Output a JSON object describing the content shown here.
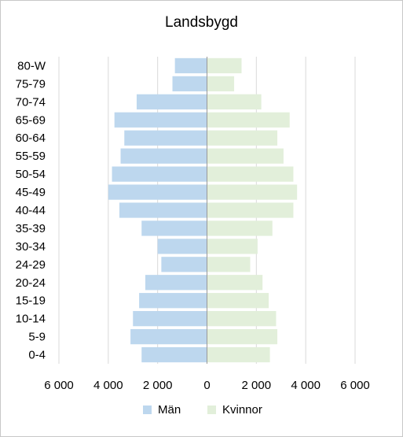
{
  "colors": {
    "man": "#bdd7ee",
    "kvinnor": "#e2efda",
    "grid": "#d9d9d9",
    "axis": "#999999"
  },
  "chart_data": {
    "type": "bar",
    "title": "Landsbygd",
    "orientation": "horizontal-population-pyramid",
    "categories": [
      "0-4",
      "5-9",
      "10-14",
      "15-19",
      "20-24",
      "24-29",
      "30-34",
      "35-39",
      "40-44",
      "45-49",
      "50-54",
      "55-59",
      "60-64",
      "65-69",
      "70-74",
      "75-79",
      "80-W"
    ],
    "series": [
      {
        "name": "Män",
        "side": "left",
        "values": [
          2650,
          3100,
          3000,
          2750,
          2500,
          1850,
          2000,
          2650,
          3550,
          4000,
          3850,
          3500,
          3350,
          3750,
          2850,
          1400,
          1300
        ]
      },
      {
        "name": "Kvinnor",
        "side": "right",
        "values": [
          2550,
          2850,
          2800,
          2500,
          2250,
          1750,
          2050,
          2650,
          3500,
          3650,
          3500,
          3100,
          2850,
          3350,
          2200,
          1100,
          1400
        ]
      }
    ],
    "xlim": [
      -6000,
      6000
    ],
    "xticks": [
      "6 000",
      "4 000",
      "2 000",
      "0",
      "2 000",
      "4 000",
      "6 000"
    ],
    "grid": true,
    "legend": "bottom"
  }
}
